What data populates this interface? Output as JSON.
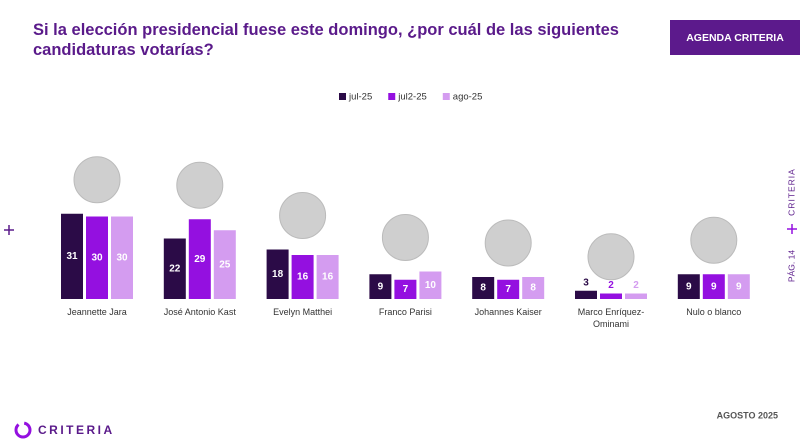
{
  "header": {
    "title": "Si la elección presidencial fuese este domingo, ¿por cuál de las siguientes candidaturas votarías?",
    "button": "AGENDA CRITERIA"
  },
  "side": {
    "brand": "CRITERIA",
    "page": "PÁG. 14"
  },
  "footer": {
    "date": "AGOSTO 2025",
    "logo": "CRITERIA"
  },
  "chart_data": {
    "type": "bar",
    "categories": [
      "Jeannette Jara",
      "José Antonio Kast",
      "Evelyn Matthei",
      "Franco Parisi",
      "Johannes Kaiser",
      "Marco Enríquez-Ominami",
      "Nulo o blanco"
    ],
    "series": [
      {
        "name": "jul-25",
        "color": "#2b0b47",
        "values": [
          31,
          22,
          18,
          9,
          8,
          3,
          9
        ]
      },
      {
        "name": "jul2-25",
        "color": "#9410e0",
        "values": [
          30,
          29,
          16,
          7,
          7,
          2,
          9
        ]
      },
      {
        "name": "ago-25",
        "color": "#d49cf0",
        "values": [
          30,
          25,
          16,
          10,
          8,
          2,
          9
        ]
      }
    ]
  }
}
